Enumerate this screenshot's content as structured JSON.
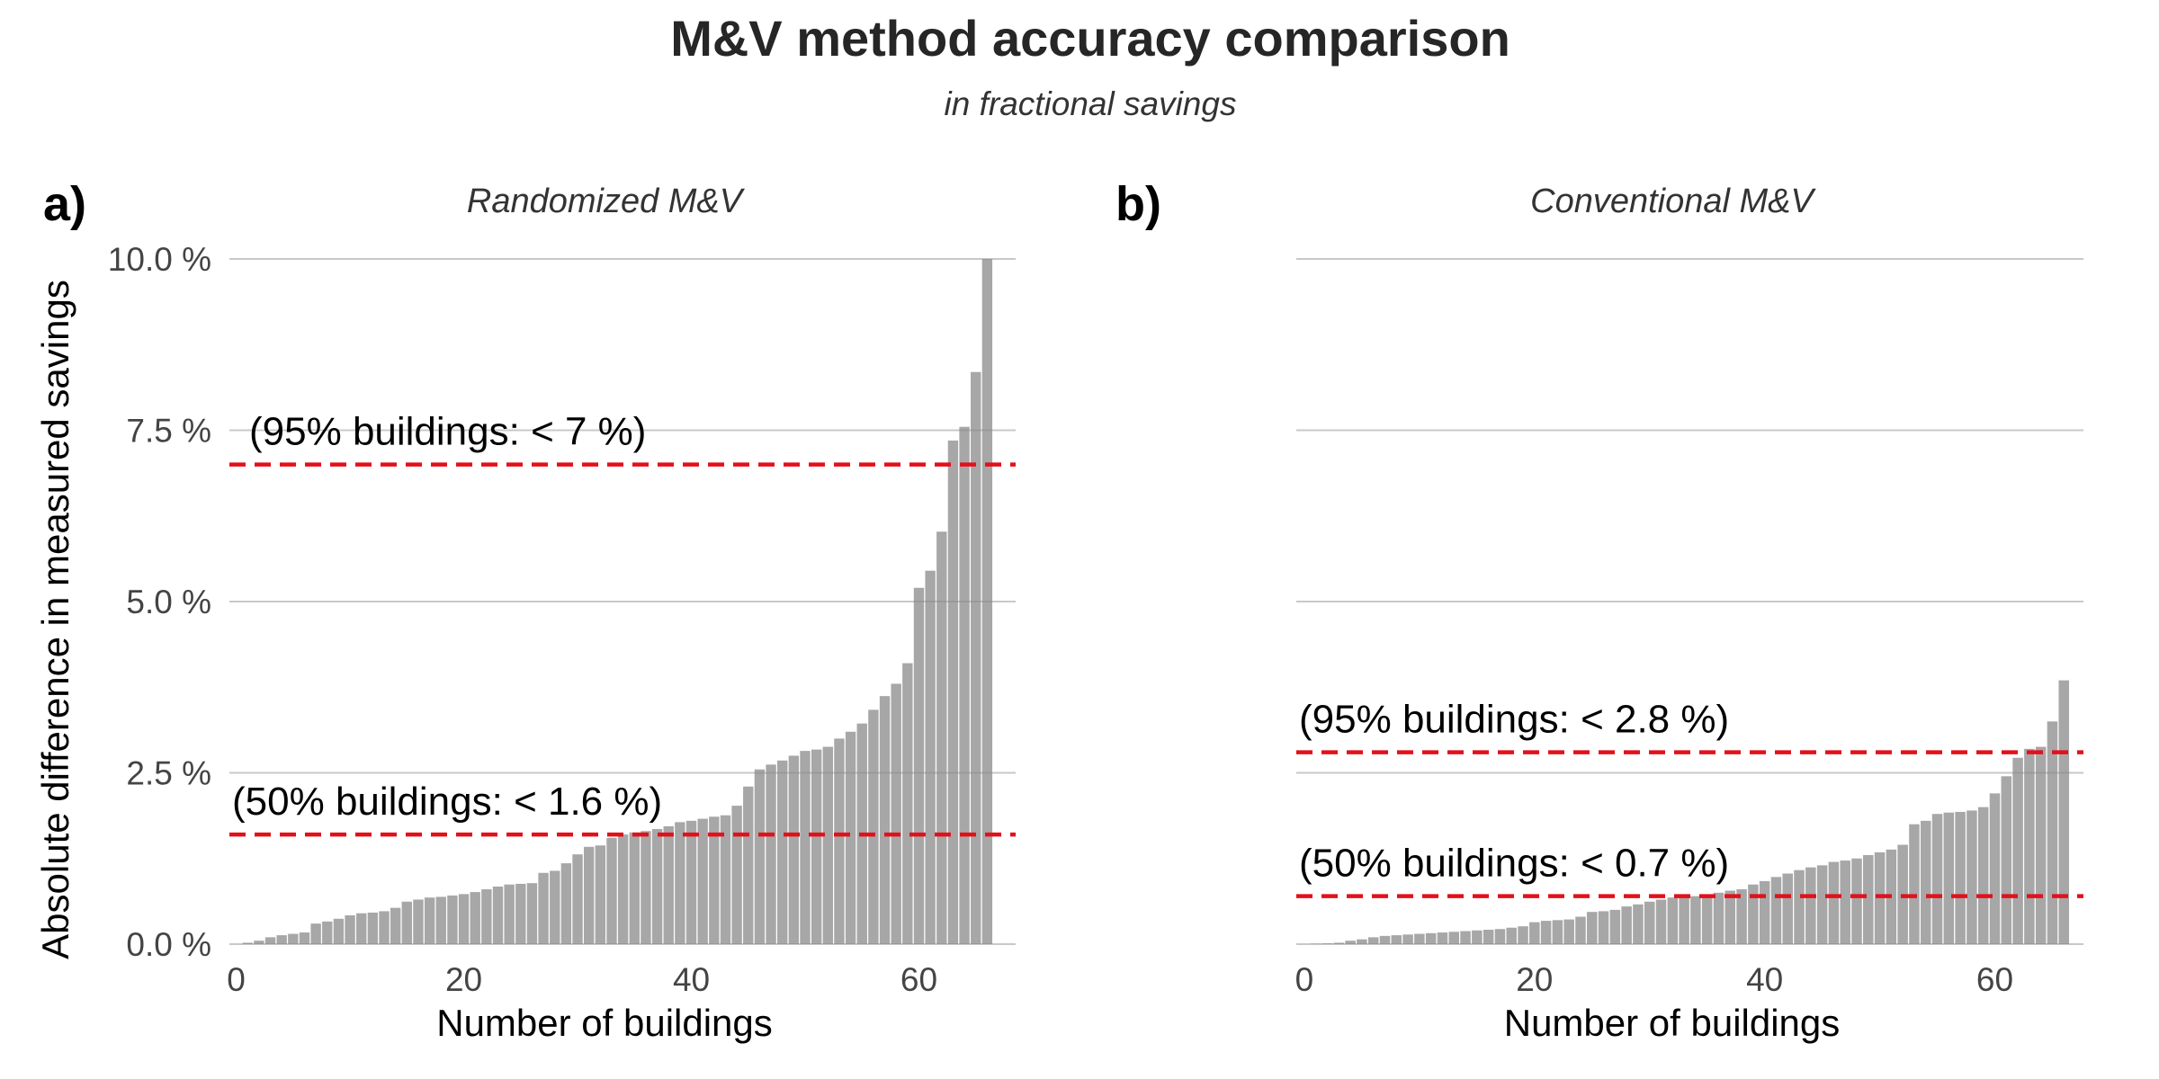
{
  "title": "M&V method accuracy comparison",
  "subtitle": "in fractional savings",
  "chart_data": [
    {
      "type": "bar",
      "panel_label": "a)",
      "title": "Randomized M&V",
      "xlabel": "Number of buildings",
      "ylabel": "Absolute difference in measured savings",
      "x": [
        0,
        1,
        2,
        3,
        4,
        5,
        6,
        7,
        8,
        9,
        10,
        11,
        12,
        13,
        14,
        15,
        16,
        17,
        18,
        19,
        20,
        21,
        22,
        23,
        24,
        25,
        26,
        27,
        28,
        29,
        30,
        31,
        32,
        33,
        34,
        35,
        36,
        37,
        38,
        39,
        40,
        41,
        42,
        43,
        44,
        45,
        46,
        47,
        48,
        49,
        50,
        51,
        52,
        53,
        54,
        55,
        56,
        57,
        58,
        59,
        60,
        61,
        62,
        63,
        64,
        65,
        66
      ],
      "values": [
        0.0,
        0.02,
        0.05,
        0.1,
        0.13,
        0.15,
        0.17,
        0.3,
        0.33,
        0.37,
        0.42,
        0.45,
        0.46,
        0.48,
        0.53,
        0.62,
        0.65,
        0.68,
        0.69,
        0.71,
        0.73,
        0.76,
        0.8,
        0.84,
        0.87,
        0.88,
        0.89,
        1.04,
        1.07,
        1.18,
        1.31,
        1.42,
        1.44,
        1.55,
        1.6,
        1.63,
        1.65,
        1.68,
        1.72,
        1.78,
        1.8,
        1.83,
        1.86,
        1.88,
        2.02,
        2.3,
        2.55,
        2.62,
        2.68,
        2.75,
        2.82,
        2.84,
        2.88,
        3.0,
        3.1,
        3.22,
        3.42,
        3.62,
        3.8,
        4.1,
        5.2,
        5.45,
        6.02,
        7.35,
        7.55,
        8.35,
        10.0
      ],
      "color": "#8a8a8a",
      "xlim": [
        -0.6,
        68.5
      ],
      "xticks": [
        0,
        20,
        40,
        60
      ],
      "ylim": [
        0,
        10
      ],
      "yticks": [
        {
          "value": 0,
          "label": "0.0 %"
        },
        {
          "value": 2.5,
          "label": "2.5 %"
        },
        {
          "value": 5,
          "label": "5.0 %"
        },
        {
          "value": 7.5,
          "label": "7.5 %"
        },
        {
          "value": 10,
          "label": "10.0 %"
        }
      ],
      "grid": true,
      "hlines": [
        {
          "value": 7,
          "label": "(95% buildings: < 7 %)"
        },
        {
          "value": 1.6,
          "label": "(50% buildings: < 1.6 %)"
        }
      ],
      "hline_color": "#e3101a"
    },
    {
      "type": "bar",
      "panel_label": "b)",
      "title": "Conventional M&V",
      "xlabel": "Number of buildings",
      "x": [
        0,
        1,
        2,
        3,
        4,
        5,
        6,
        7,
        8,
        9,
        10,
        11,
        12,
        13,
        14,
        15,
        16,
        17,
        18,
        19,
        20,
        21,
        22,
        23,
        24,
        25,
        26,
        27,
        28,
        29,
        30,
        31,
        32,
        33,
        34,
        35,
        36,
        37,
        38,
        39,
        40,
        41,
        42,
        43,
        44,
        45,
        46,
        47,
        48,
        49,
        50,
        51,
        52,
        53,
        54,
        55,
        56,
        57,
        58,
        59,
        60,
        61,
        62,
        63,
        64,
        65,
        66
      ],
      "values": [
        0,
        0.005,
        0.01,
        0.02,
        0.05,
        0.07,
        0.1,
        0.12,
        0.13,
        0.14,
        0.15,
        0.16,
        0.17,
        0.18,
        0.19,
        0.2,
        0.21,
        0.22,
        0.24,
        0.26,
        0.32,
        0.34,
        0.35,
        0.36,
        0.4,
        0.47,
        0.48,
        0.5,
        0.55,
        0.58,
        0.62,
        0.65,
        0.68,
        0.7,
        0.7,
        0.72,
        0.75,
        0.78,
        0.8,
        0.87,
        0.92,
        0.98,
        1.03,
        1.08,
        1.12,
        1.15,
        1.2,
        1.22,
        1.25,
        1.3,
        1.34,
        1.38,
        1.45,
        1.75,
        1.8,
        1.9,
        1.92,
        1.93,
        1.95,
        2.0,
        2.2,
        2.45,
        2.72,
        2.85,
        2.88,
        3.25,
        3.85
      ],
      "color": "#8a8a8a",
      "xlim": [
        -0.7,
        67.7
      ],
      "xticks": [
        0,
        20,
        40,
        60
      ],
      "ylim": [
        0,
        10
      ],
      "yticks": [
        0,
        2.5,
        5,
        7.5,
        10
      ],
      "grid": true,
      "hlines": [
        {
          "value": 2.8,
          "label": "(95% buildings: < 2.8 %)"
        },
        {
          "value": 0.7,
          "label": "(50% buildings: < 0.7 %)"
        }
      ],
      "hline_color": "#e3101a"
    }
  ]
}
